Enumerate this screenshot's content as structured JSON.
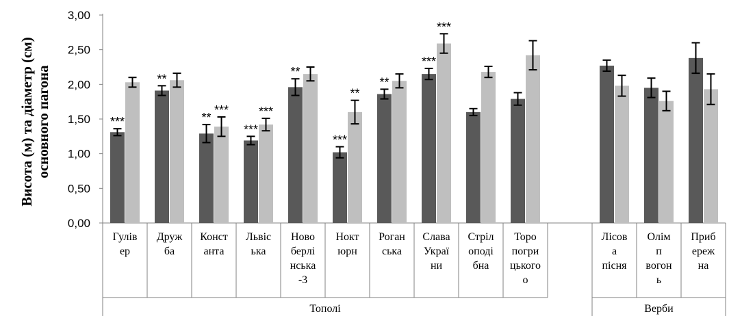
{
  "chart_data": {
    "type": "bar",
    "ylabel": [
      "Висота (м) та діаметр (см)",
      "основного пагона"
    ],
    "ylim": [
      0,
      3
    ],
    "yticks": [
      "0,00",
      "0,50",
      "1,00",
      "1,50",
      "2,00",
      "2,50",
      "3,00"
    ],
    "colors": {
      "series1": "#595959",
      "series2": "#bfbfbf",
      "error": "#000000",
      "axis": "#808080"
    },
    "groups": [
      {
        "label": "Тополі",
        "categories": [
          "Гулівер",
          "Дружба",
          "Константа",
          "Львівська",
          "Новоберлінська-3",
          "Ноктюрн",
          "Роганська",
          "Слава України",
          "Стріл оподібна",
          "Торопогрицького"
        ]
      },
      {
        "label": "Верби",
        "categories": [
          "Лісова пісня",
          "Олімп вогонь",
          "Прибережна"
        ]
      }
    ],
    "categories": [
      {
        "label_lines": [
          "Гулів",
          "ер"
        ],
        "v1": 1.31,
        "e1": 0.05,
        "v2": 2.03,
        "e2": 0.07,
        "s1": "***",
        "s2": ""
      },
      {
        "label_lines": [
          "Друж",
          "ба"
        ],
        "v1": 1.91,
        "e1": 0.07,
        "v2": 2.06,
        "e2": 0.1,
        "s1": "**",
        "s2": ""
      },
      {
        "label_lines": [
          "Конст",
          "анта"
        ],
        "v1": 1.29,
        "e1": 0.13,
        "v2": 1.39,
        "e2": 0.14,
        "s1": "**",
        "s2": "***"
      },
      {
        "label_lines": [
          "Львіс",
          "ька"
        ],
        "v1": 1.19,
        "e1": 0.06,
        "v2": 1.42,
        "e2": 0.09,
        "s1": "***",
        "s2": "***"
      },
      {
        "label_lines": [
          "Ново",
          "берлі",
          "нська",
          "-3"
        ],
        "v1": 1.96,
        "e1": 0.12,
        "v2": 2.15,
        "e2": 0.1,
        "s1": "**",
        "s2": ""
      },
      {
        "label_lines": [
          "Нокт",
          "юрн"
        ],
        "v1": 1.02,
        "e1": 0.08,
        "v2": 1.6,
        "e2": 0.17,
        "s1": "***",
        "s2": "**"
      },
      {
        "label_lines": [
          "Роган",
          "ська"
        ],
        "v1": 1.86,
        "e1": 0.07,
        "v2": 2.05,
        "e2": 0.1,
        "s1": "**",
        "s2": ""
      },
      {
        "label_lines": [
          "Слава",
          "Украї",
          "ни"
        ],
        "v1": 2.15,
        "e1": 0.08,
        "v2": 2.59,
        "e2": 0.14,
        "s1": "***",
        "s2": "***"
      },
      {
        "label_lines": [
          "Стріл",
          "оподі",
          "бна"
        ],
        "v1": 1.6,
        "e1": 0.05,
        "v2": 2.18,
        "e2": 0.08,
        "s1": "",
        "s2": ""
      },
      {
        "label_lines": [
          "Торо",
          "погри",
          "цького",
          "о"
        ],
        "v1": 1.79,
        "e1": 0.09,
        "v2": 2.42,
        "e2": 0.21,
        "s1": "",
        "s2": ""
      },
      {
        "label_lines": [],
        "empty": true
      },
      {
        "label_lines": [
          "Лісов",
          "а",
          "пісня"
        ],
        "v1": 2.27,
        "e1": 0.08,
        "v2": 1.98,
        "e2": 0.15,
        "s1": "",
        "s2": ""
      },
      {
        "label_lines": [
          "Олім",
          "п",
          "вогон",
          "ь"
        ],
        "v1": 1.95,
        "e1": 0.14,
        "v2": 1.76,
        "e2": 0.14,
        "s1": "",
        "s2": ""
      },
      {
        "label_lines": [
          "Приб",
          "ереж",
          "на"
        ],
        "v1": 2.38,
        "e1": 0.22,
        "v2": 1.93,
        "e2": 0.22,
        "s1": "",
        "s2": ""
      }
    ]
  }
}
